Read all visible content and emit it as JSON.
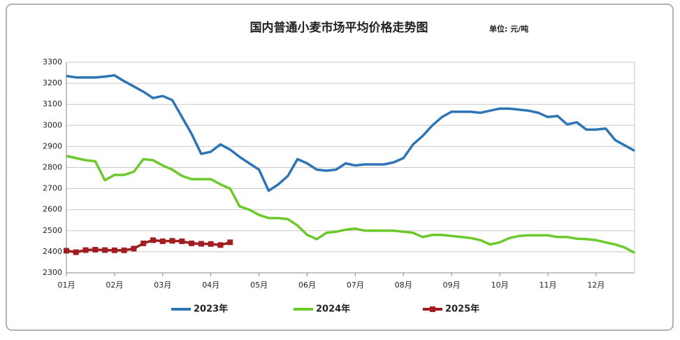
{
  "chart_data": {
    "type": "line",
    "title": "国内普通小麦市场平均价格走势图",
    "unit_label": "单位: 元/吨",
    "categories": [
      "01月",
      null,
      null,
      null,
      null,
      "02月",
      null,
      null,
      null,
      null,
      "03月",
      null,
      null,
      null,
      null,
      "04月",
      null,
      null,
      null,
      null,
      "05月",
      null,
      null,
      null,
      null,
      "06月",
      null,
      null,
      null,
      null,
      "07月",
      null,
      null,
      null,
      null,
      "08月",
      null,
      null,
      null,
      null,
      "09月",
      null,
      null,
      null,
      null,
      "10月",
      null,
      null,
      null,
      null,
      "11月",
      null,
      null,
      null,
      null,
      "12月",
      null,
      null,
      null,
      null
    ],
    "series": [
      {
        "name": "2023年",
        "color": "#2e75b6",
        "marker": false,
        "values": [
          3235,
          3228,
          3228,
          3228,
          3232,
          3238,
          3210,
          3185,
          3160,
          3130,
          3140,
          3120,
          3040,
          2960,
          2865,
          2875,
          2910,
          2885,
          2850,
          2820,
          2790,
          2690,
          2720,
          2760,
          2840,
          2820,
          2790,
          2785,
          2790,
          2820,
          2810,
          2815,
          2815,
          2815,
          2825,
          2845,
          2910,
          2950,
          3000,
          3040,
          3065,
          3065,
          3065,
          3060,
          3070,
          3080,
          3080,
          3075,
          3070,
          3060,
          3040,
          3045,
          3005,
          3015,
          2980,
          2980,
          2985,
          2930,
          2905,
          2880
        ]
      },
      {
        "name": "2024年",
        "color": "#6cc92a",
        "marker": false,
        "values": [
          2855,
          2845,
          2835,
          2830,
          2740,
          2765,
          2765,
          2780,
          2840,
          2835,
          2810,
          2790,
          2760,
          2745,
          2745,
          2745,
          2720,
          2700,
          2615,
          2600,
          2575,
          2560,
          2560,
          2555,
          2525,
          2480,
          2460,
          2490,
          2495,
          2505,
          2510,
          2500,
          2500,
          2500,
          2500,
          2495,
          2490,
          2470,
          2480,
          2480,
          2475,
          2470,
          2465,
          2455,
          2435,
          2445,
          2465,
          2475,
          2478,
          2478,
          2478,
          2470,
          2470,
          2462,
          2460,
          2455,
          2445,
          2435,
          2420,
          2395
        ]
      },
      {
        "name": "2025年",
        "color": "#a11d21",
        "marker": true,
        "values": [
          2405,
          2398,
          2408,
          2410,
          2408,
          2407,
          2407,
          2415,
          2440,
          2455,
          2450,
          2452,
          2450,
          2440,
          2438,
          2437,
          2432,
          2445,
          null,
          null,
          null,
          null,
          null,
          null,
          null,
          null,
          null,
          null,
          null,
          null,
          null,
          null,
          null,
          null,
          null,
          null,
          null,
          null,
          null,
          null,
          null,
          null,
          null,
          null,
          null,
          null,
          null,
          null,
          null,
          null,
          null,
          null,
          null,
          null,
          null,
          null,
          null,
          null,
          null,
          null
        ]
      }
    ],
    "ylim": [
      2300,
      3300
    ],
    "yticks": [
      2300,
      2400,
      2500,
      2600,
      2700,
      2800,
      2900,
      3000,
      3100,
      3200,
      3300
    ],
    "grid": true,
    "legend": "bottom"
  }
}
